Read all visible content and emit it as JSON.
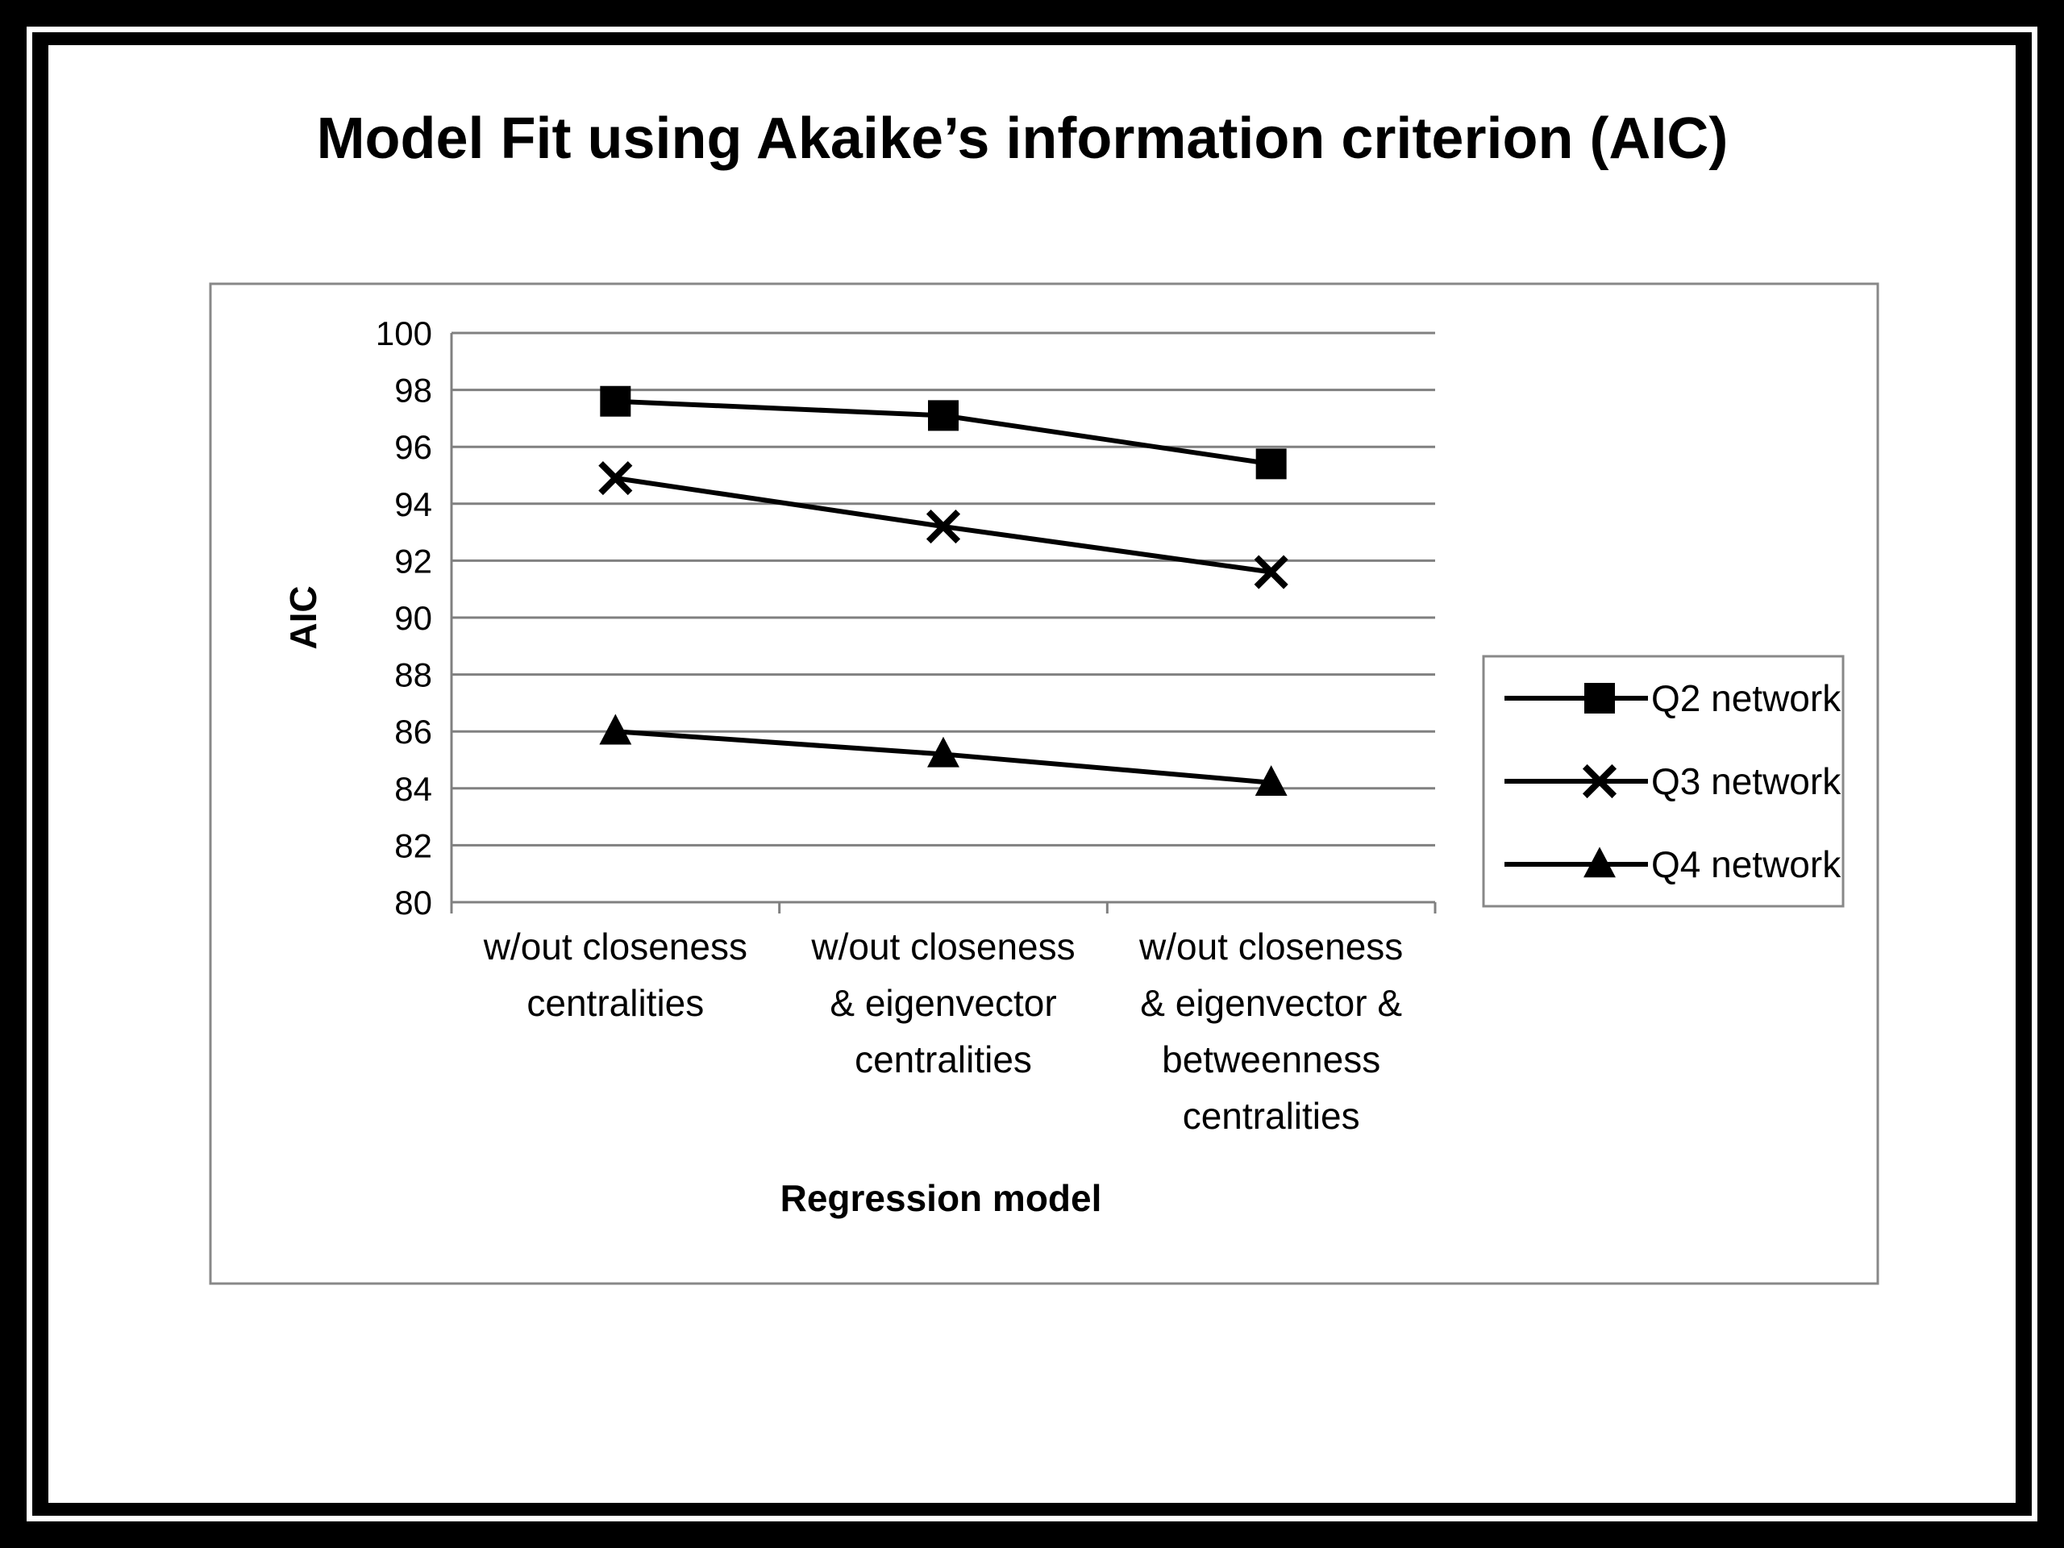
{
  "chart_data": {
    "type": "line",
    "title": "Model Fit using Akaike’s information criterion (AIC)",
    "xlabel": "Regression model",
    "ylabel": "AIC",
    "ylim": [
      80,
      100
    ],
    "yticks": [
      "100",
      "98",
      "96",
      "94",
      "92",
      "90",
      "88",
      "86",
      "84",
      "82",
      "80"
    ],
    "grid": true,
    "legend_position": "right",
    "categories": [
      [
        "w/out closeness",
        "centralities"
      ],
      [
        "w/out closeness",
        "& eigenvector",
        "centralities"
      ],
      [
        "w/out closeness",
        "& eigenvector &",
        "betweenness",
        "centralities"
      ]
    ],
    "series": [
      {
        "name": "Q2 network",
        "marker": "square",
        "values": [
          97.6,
          97.1,
          95.4
        ]
      },
      {
        "name": "Q3 network",
        "marker": "x",
        "values": [
          94.9,
          93.2,
          91.6
        ]
      },
      {
        "name": "Q4 network",
        "marker": "triangle",
        "values": [
          86.0,
          85.2,
          84.2
        ]
      }
    ],
    "colors": {
      "line": "#000000",
      "grid": "#808080",
      "background": "#ffffff",
      "frame": "#000000"
    }
  }
}
